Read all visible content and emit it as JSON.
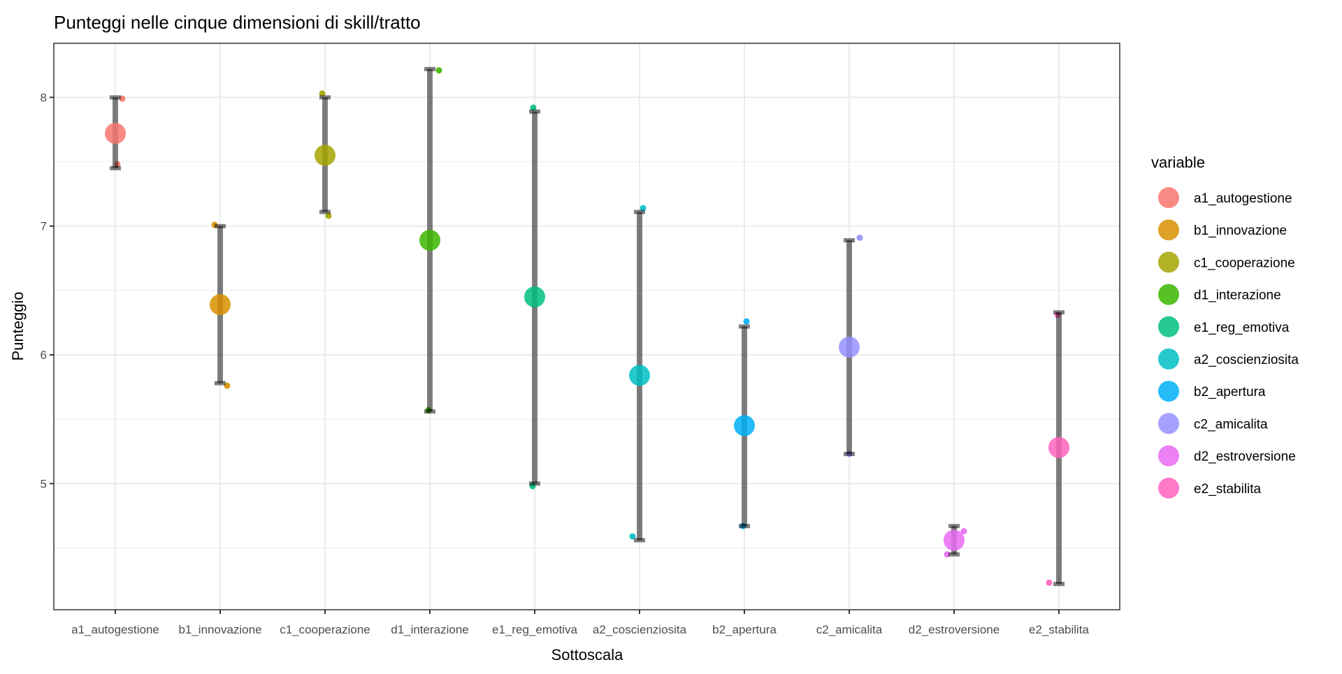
{
  "chart_data": {
    "type": "scatter",
    "title": "Punteggi nelle cinque dimensioni di skill/tratto",
    "xlabel": "Sottoscala",
    "ylabel": "Punteggio",
    "ylim": [
      4.02,
      8.42
    ],
    "yticks": [
      5,
      6,
      7,
      8
    ],
    "grid": true,
    "legend": {
      "title": "variable",
      "placement": "right"
    },
    "categories": [
      "a1_autogestione",
      "b1_innovazione",
      "c1_cooperazione",
      "d1_interazione",
      "e1_reg_emotiva",
      "a2_coscienziosita",
      "b2_apertura",
      "c2_amicalita",
      "d2_estroversione",
      "e2_stabilita"
    ],
    "colors": [
      "#F8766D",
      "#D89000",
      "#A3A500",
      "#39B600",
      "#00BF7D",
      "#00BFC4",
      "#00B0F6",
      "#9590FF",
      "#E76BF3",
      "#FF62BC"
    ],
    "series": [
      {
        "name": "a1_autogestione",
        "mean": 7.72,
        "lower": 7.45,
        "upper": 8.0,
        "points": [
          7.99,
          7.48
        ]
      },
      {
        "name": "b1_innovazione",
        "mean": 6.39,
        "lower": 5.78,
        "upper": 7.0,
        "points": [
          7.01,
          5.76
        ]
      },
      {
        "name": "c1_cooperazione",
        "mean": 7.55,
        "lower": 7.11,
        "upper": 8.0,
        "points": [
          8.03,
          7.08
        ]
      },
      {
        "name": "d1_interazione",
        "mean": 6.89,
        "lower": 5.56,
        "upper": 8.22,
        "points": [
          8.21,
          5.57
        ]
      },
      {
        "name": "e1_reg_emotiva",
        "mean": 6.45,
        "lower": 5.0,
        "upper": 7.89,
        "points": [
          7.92,
          4.98
        ]
      },
      {
        "name": "a2_coscienziosita",
        "mean": 5.84,
        "lower": 4.56,
        "upper": 7.11,
        "points": [
          7.14,
          4.59
        ]
      },
      {
        "name": "b2_apertura",
        "mean": 5.45,
        "lower": 4.67,
        "upper": 6.22,
        "points": [
          6.26,
          4.67
        ]
      },
      {
        "name": "c2_amicalita",
        "mean": 6.06,
        "lower": 5.23,
        "upper": 6.89,
        "points": [
          6.91,
          5.23
        ]
      },
      {
        "name": "d2_estroversione",
        "mean": 4.56,
        "lower": 4.45,
        "upper": 4.67,
        "points": [
          4.63,
          4.45
        ]
      },
      {
        "name": "e2_stabilita",
        "mean": 5.28,
        "lower": 4.22,
        "upper": 6.33,
        "points": [
          6.31,
          4.23
        ]
      }
    ]
  }
}
